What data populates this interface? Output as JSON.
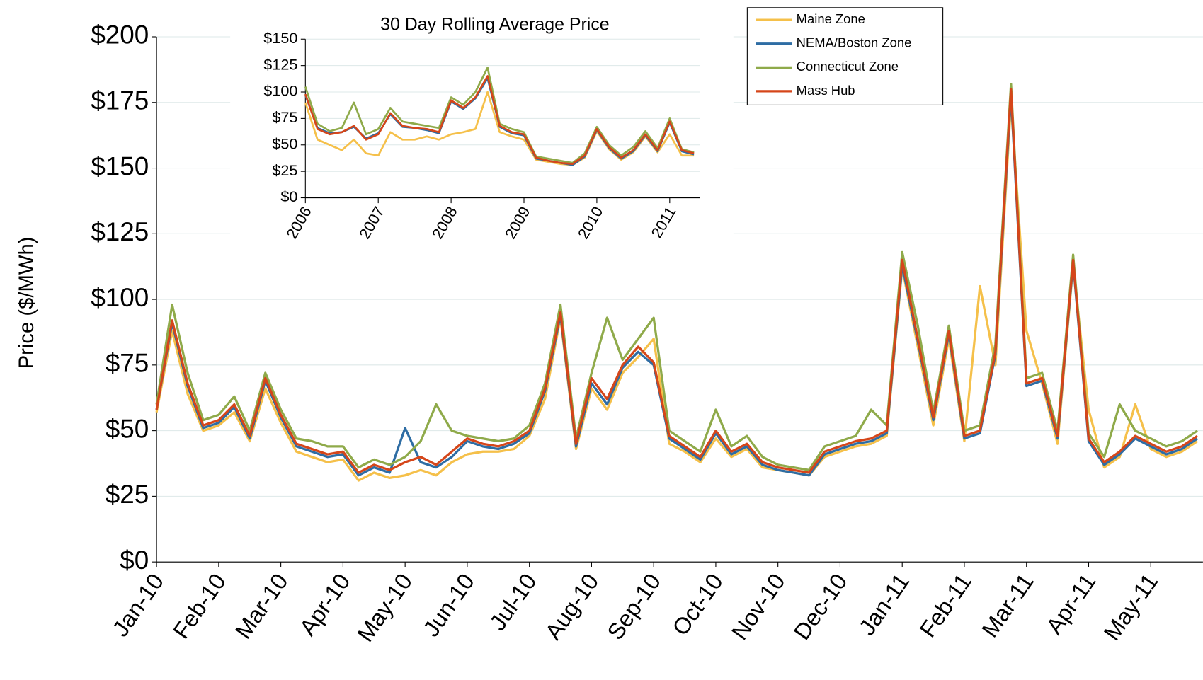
{
  "chart_data": [
    {
      "type": "line",
      "y_label": "Price ($/MWh)",
      "categories": [
        "Jan-10",
        null,
        null,
        null,
        "Feb-10",
        null,
        null,
        null,
        "Mar-10",
        null,
        null,
        null,
        "Apr-10",
        null,
        null,
        null,
        "May-10",
        null,
        null,
        null,
        "Jun-10",
        null,
        null,
        null,
        "Jul-10",
        null,
        null,
        null,
        "Aug-10",
        null,
        null,
        null,
        "Sep-10",
        null,
        null,
        null,
        "Oct-10",
        null,
        null,
        null,
        "Nov-10",
        null,
        null,
        null,
        "Dec-10",
        null,
        null,
        null,
        "Jan-11",
        null,
        null,
        null,
        "Feb-11",
        null,
        null,
        null,
        "Mar-11",
        null,
        null,
        null,
        "Apr-11",
        null,
        null,
        null,
        "May-11",
        null,
        null,
        null
      ],
      "ylim": [
        0,
        200
      ],
      "yticks": [
        {
          "value": 0,
          "label": "$0"
        },
        {
          "value": 25,
          "label": "$25"
        },
        {
          "value": 50,
          "label": "$50"
        },
        {
          "value": 75,
          "label": "$75"
        },
        {
          "value": 100,
          "label": "$100"
        },
        {
          "value": 125,
          "label": "$125"
        },
        {
          "value": 150,
          "label": "$150"
        },
        {
          "value": 175,
          "label": "$175"
        },
        {
          "value": 200,
          "label": "$200"
        }
      ],
      "grid": true,
      "legend": "top-right",
      "series": [
        {
          "name": "Maine Zone",
          "color": "#f5c04a",
          "values": [
            57,
            88,
            64,
            50,
            52,
            57,
            46,
            66,
            53,
            42,
            40,
            38,
            39,
            31,
            34,
            32,
            33,
            35,
            33,
            38,
            41,
            42,
            42,
            43,
            48,
            62,
            93,
            43,
            66,
            58,
            72,
            78,
            85,
            45,
            42,
            38,
            47,
            40,
            43,
            36,
            35,
            34,
            33,
            40,
            42,
            44,
            45,
            48,
            112,
            82,
            52,
            85,
            46,
            105,
            75,
            175,
            88,
            68,
            45,
            113,
            58,
            36,
            40,
            60,
            43,
            40,
            42,
            46
          ]
        },
        {
          "name": "NEMA/Boston Zone",
          "color": "#2e6da4",
          "values": [
            58,
            91,
            67,
            51,
            53,
            59,
            47,
            69,
            55,
            44,
            42,
            40,
            41,
            33,
            36,
            34,
            51,
            38,
            36,
            40,
            46,
            44,
            43,
            45,
            49,
            65,
            94,
            44,
            68,
            60,
            74,
            80,
            75,
            47,
            43,
            39,
            49,
            41,
            44,
            37,
            35,
            34,
            33,
            41,
            43,
            45,
            46,
            49,
            113,
            84,
            54,
            87,
            47,
            49,
            79,
            178,
            67,
            69,
            47,
            114,
            46,
            37,
            41,
            47,
            44,
            41,
            43,
            47
          ]
        },
        {
          "name": "Connecticut Zone",
          "color": "#8faa4a",
          "values": [
            60,
            98,
            72,
            54,
            56,
            63,
            50,
            72,
            58,
            47,
            46,
            44,
            44,
            36,
            39,
            37,
            40,
            46,
            60,
            50,
            48,
            47,
            46,
            47,
            52,
            68,
            98,
            47,
            72,
            93,
            77,
            85,
            93,
            50,
            46,
            42,
            58,
            44,
            48,
            40,
            37,
            36,
            35,
            44,
            46,
            48,
            58,
            52,
            118,
            90,
            57,
            90,
            50,
            52,
            83,
            182,
            70,
            72,
            50,
            117,
            49,
            40,
            60,
            50,
            47,
            44,
            46,
            50
          ]
        },
        {
          "name": "Mass Hub",
          "color": "#d5461a",
          "values": [
            58,
            92,
            68,
            52,
            54,
            60,
            48,
            70,
            56,
            45,
            43,
            41,
            42,
            34,
            37,
            35,
            38,
            40,
            37,
            42,
            47,
            45,
            44,
            46,
            50,
            66,
            95,
            45,
            70,
            62,
            75,
            82,
            76,
            48,
            44,
            40,
            50,
            42,
            45,
            38,
            36,
            35,
            34,
            42,
            44,
            46,
            47,
            50,
            115,
            85,
            55,
            88,
            48,
            50,
            80,
            180,
            68,
            70,
            48,
            115,
            47,
            38,
            42,
            48,
            45,
            42,
            44,
            48
          ]
        }
      ]
    },
    {
      "type": "line",
      "title": "30 Day Rolling Average Price",
      "categories": [
        "2006",
        null,
        null,
        null,
        null,
        null,
        "2007",
        null,
        null,
        null,
        null,
        null,
        "2008",
        null,
        null,
        null,
        null,
        null,
        "2009",
        null,
        null,
        null,
        null,
        null,
        "2010",
        null,
        null,
        null,
        null,
        null,
        "2011",
        null,
        null
      ],
      "ylim": [
        0,
        150
      ],
      "yticks": [
        {
          "value": 0,
          "label": "$0"
        },
        {
          "value": 25,
          "label": "$25"
        },
        {
          "value": 50,
          "label": "$50"
        },
        {
          "value": 75,
          "label": "$75"
        },
        {
          "value": 100,
          "label": "$100"
        },
        {
          "value": 125,
          "label": "$125"
        },
        {
          "value": 150,
          "label": "$150"
        }
      ],
      "grid": true,
      "series": [
        {
          "color": "#f5c04a",
          "values": [
            90,
            55,
            50,
            45,
            55,
            42,
            40,
            62,
            55,
            55,
            58,
            55,
            60,
            62,
            65,
            100,
            62,
            58,
            55,
            36,
            34,
            32,
            31,
            38,
            63,
            46,
            36,
            43,
            58,
            43,
            60,
            40,
            40
          ]
        },
        {
          "color": "#2e6da4",
          "values": [
            97,
            66,
            61,
            62,
            67,
            56,
            61,
            79,
            67,
            66,
            64,
            61,
            91,
            84,
            94,
            113,
            67,
            61,
            59,
            37,
            35,
            33,
            31,
            39,
            64,
            47,
            37,
            44,
            59,
            44,
            71,
            44,
            41
          ]
        },
        {
          "color": "#8faa4a",
          "values": [
            105,
            70,
            63,
            66,
            90,
            60,
            65,
            85,
            72,
            70,
            68,
            66,
            95,
            88,
            100,
            123,
            70,
            65,
            62,
            39,
            37,
            35,
            33,
            42,
            67,
            50,
            40,
            48,
            63,
            47,
            75,
            46,
            43
          ]
        },
        {
          "color": "#d5461a",
          "values": [
            98,
            65,
            60,
            62,
            68,
            55,
            60,
            80,
            68,
            66,
            65,
            62,
            92,
            85,
            95,
            115,
            68,
            62,
            60,
            38,
            35,
            33,
            32,
            40,
            65,
            48,
            38,
            45,
            60,
            45,
            72,
            45,
            42
          ]
        }
      ]
    }
  ]
}
